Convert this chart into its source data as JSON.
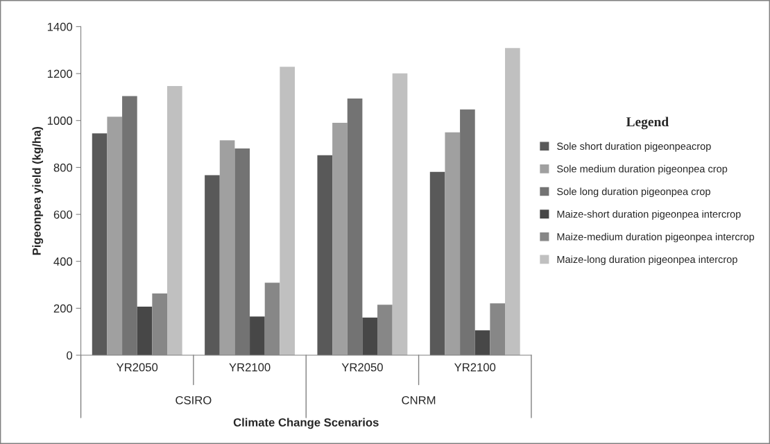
{
  "chart_data": {
    "type": "bar",
    "xlabel": "Climate Change Scenarios",
    "ylabel": "Pigeonpea yield (kg/ha)",
    "legend_title": "Legend",
    "categories": [
      "YR2050",
      "YR2100",
      "YR2050",
      "YR2100"
    ],
    "annotations": [
      "CSIRO",
      "CNRM"
    ],
    "series": [
      {
        "name": "Sole short duration pigeonpeacrop",
        "color": "#595959",
        "values": [
          945,
          767,
          852,
          781
        ]
      },
      {
        "name": "Sole medium duration pigeonpea crop",
        "color": "#a0a0a0",
        "values": [
          1016,
          916,
          990,
          950
        ]
      },
      {
        "name": "Sole long duration pigeonpea crop",
        "color": "#737373",
        "values": [
          1104,
          881,
          1094,
          1047
        ]
      },
      {
        "name": "Maize-short duration pigeonpea intercrop",
        "color": "#474747",
        "values": [
          207,
          165,
          160,
          106
        ]
      },
      {
        "name": "Maize-medium duration pigeonpea intercrop",
        "color": "#878787",
        "values": [
          263,
          309,
          215,
          221
        ]
      },
      {
        "name": "Maize-long duration pigeonpea intercrop",
        "color": "#c0c0c0",
        "values": [
          1147,
          1229,
          1201,
          1309
        ]
      }
    ],
    "ylim": [
      0,
      1400
    ],
    "yticks": [
      0,
      200,
      400,
      600,
      800,
      1000,
      1200,
      1400
    ],
    "grid": false,
    "legend": "right"
  }
}
